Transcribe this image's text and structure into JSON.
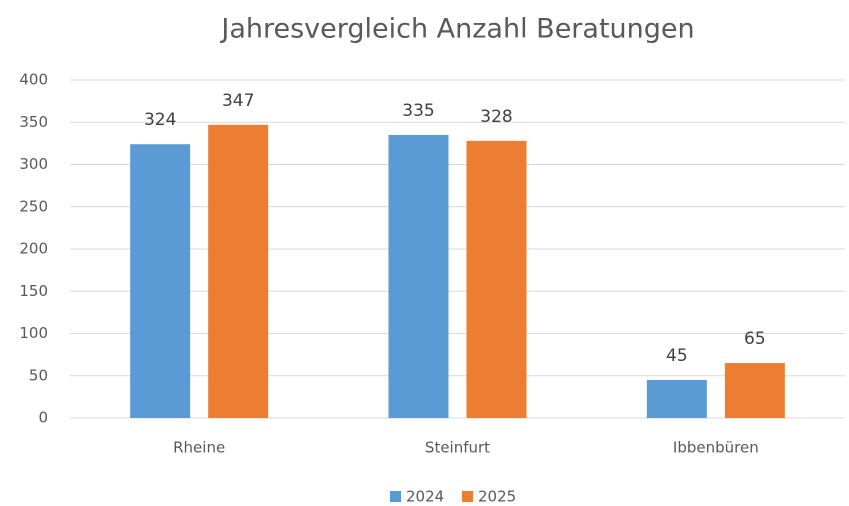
{
  "chart_data": {
    "type": "bar",
    "title": "Jahresvergleich Anzahl Beratungen",
    "categories": [
      "Rheine",
      "Steinfurt",
      "Ibbenbüren"
    ],
    "series": [
      {
        "name": "2024",
        "color": "#5b9bd5",
        "values": [
          324,
          335,
          45
        ]
      },
      {
        "name": "2025",
        "color": "#ed7d31",
        "values": [
          347,
          328,
          65
        ]
      }
    ],
    "ylim": [
      0,
      400
    ],
    "yticks": [
      0,
      50,
      100,
      150,
      200,
      250,
      300,
      350,
      400
    ],
    "grid": true,
    "legend": "bottom"
  }
}
